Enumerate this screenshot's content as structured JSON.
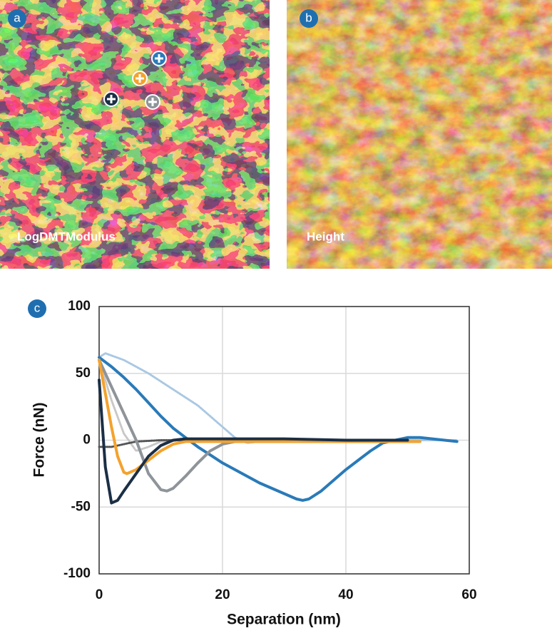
{
  "panel_labels": [
    "a",
    "b",
    "c"
  ],
  "image_captions": [
    "LogDMTModulus",
    "Height"
  ],
  "chart_data": {
    "type": "line",
    "x_label": "Separation (nm)",
    "y_label": "Force (nN)",
    "xlim": [
      0,
      60
    ],
    "ylim": [
      -100,
      100
    ],
    "xticks": [
      0,
      20,
      40,
      60
    ],
    "yticks": [
      -100,
      -50,
      0,
      50,
      100
    ],
    "grid": true,
    "series": [
      {
        "color": "#a9c8e3",
        "dash": "dotted",
        "x": [
          0,
          1,
          4,
          8,
          12,
          16,
          20,
          22,
          24,
          26,
          30,
          40,
          50,
          58
        ],
        "values": [
          62,
          65,
          60,
          50,
          38,
          26,
          10,
          2,
          -2,
          -1,
          0,
          0,
          0,
          0
        ]
      },
      {
        "color": "#c8c8c8",
        "dash": "dotted",
        "x": [
          0,
          2,
          4,
          6,
          8,
          10,
          14,
          20
        ],
        "values": [
          60,
          30,
          5,
          -8,
          -5,
          -1,
          0,
          0
        ]
      },
      {
        "color": "#555555",
        "dash": "dotted",
        "x": [
          0,
          2,
          4,
          6,
          10,
          20
        ],
        "values": [
          -5,
          -5,
          -3,
          -1,
          0,
          0
        ]
      },
      {
        "color": "#2a7ab8",
        "dash": "solid",
        "x": [
          0,
          2,
          4,
          6,
          8,
          10,
          12,
          14,
          16,
          18,
          20,
          22,
          24,
          26,
          28,
          30,
          32,
          33,
          34,
          36,
          38,
          40,
          42,
          44,
          46,
          48,
          50,
          52,
          54,
          56,
          58
        ],
        "values": [
          62,
          55,
          47,
          38,
          28,
          18,
          9,
          2,
          -5,
          -11,
          -17,
          -22,
          -27,
          -32,
          -36,
          -40,
          -44,
          -45,
          -44,
          -38,
          -30,
          -22,
          -15,
          -8,
          -2,
          0,
          2,
          2,
          1,
          0,
          -1
        ]
      },
      {
        "color": "#8e9499",
        "dash": "solid",
        "x": [
          0,
          2,
          4,
          6,
          8,
          10,
          11,
          12,
          14,
          16,
          18,
          20,
          22,
          30,
          40,
          52
        ],
        "values": [
          60,
          40,
          20,
          0,
          -25,
          -37,
          -38,
          -36,
          -27,
          -17,
          -8,
          -3,
          -1,
          -1,
          -1,
          -1
        ]
      },
      {
        "color": "#f4a22d",
        "dash": "solid",
        "x": [
          0,
          1,
          2,
          3,
          4,
          4.5,
          6,
          8,
          10,
          12,
          14,
          20,
          30,
          40,
          52
        ],
        "values": [
          60,
          35,
          10,
          -12,
          -24,
          -25,
          -22,
          -15,
          -8,
          -3,
          -1,
          -1,
          -1,
          -1,
          -1
        ]
      },
      {
        "color": "#1b2f45",
        "dash": "solid",
        "x": [
          0,
          1,
          2,
          3,
          4,
          6,
          8,
          10,
          12,
          14,
          20,
          30,
          40,
          50
        ],
        "values": [
          45,
          -20,
          -47,
          -45,
          -38,
          -25,
          -12,
          -4,
          0,
          1,
          1,
          1,
          0,
          0
        ]
      }
    ]
  }
}
